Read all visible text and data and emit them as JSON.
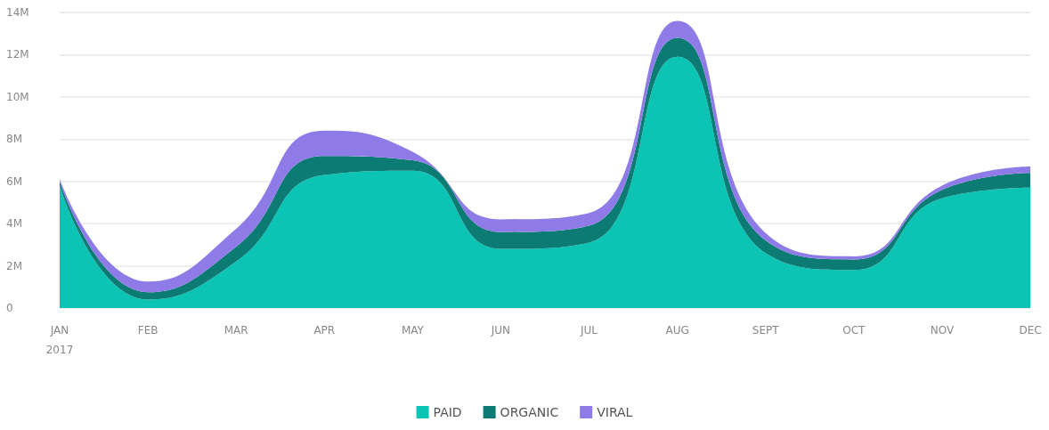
{
  "chart_data": {
    "type": "area",
    "stacked": true,
    "categories": [
      "JAN\n2017",
      "FEB",
      "MAR",
      "APR",
      "MAY",
      "JUN",
      "JUL",
      "AUG",
      "SEPT",
      "OCT",
      "NOV",
      "DEC"
    ],
    "series": [
      {
        "name": "PAID",
        "color": "#0cc4b4",
        "values": [
          5.8,
          0.4,
          2.2,
          6.3,
          6.5,
          2.8,
          3.1,
          11.9,
          2.6,
          1.8,
          5.2,
          5.7
        ]
      },
      {
        "name": "ORGANIC",
        "color": "#0b7b74",
        "values": [
          0.2,
          0.35,
          0.7,
          0.9,
          0.5,
          0.8,
          0.8,
          0.9,
          0.6,
          0.5,
          0.4,
          0.7
        ]
      },
      {
        "name": "VIRAL",
        "color": "#8f7be8",
        "values": [
          0.1,
          0.5,
          0.85,
          1.2,
          0.4,
          0.6,
          0.6,
          0.8,
          0.35,
          0.15,
          0.2,
          0.3
        ]
      }
    ],
    "ylim": [
      0,
      14
    ],
    "yticks": [
      0,
      {
        "value": 2,
        "label": "2M"
      },
      {
        "value": 4,
        "label": "4M"
      },
      {
        "value": 6,
        "label": "6M"
      },
      {
        "value": 8,
        "label": "8M"
      },
      {
        "value": 10,
        "label": "10M"
      },
      {
        "value": 12,
        "label": "12M"
      },
      {
        "value": 14,
        "label": "14M"
      }
    ],
    "grid": "y",
    "legend": "bottom",
    "marker": "none"
  }
}
